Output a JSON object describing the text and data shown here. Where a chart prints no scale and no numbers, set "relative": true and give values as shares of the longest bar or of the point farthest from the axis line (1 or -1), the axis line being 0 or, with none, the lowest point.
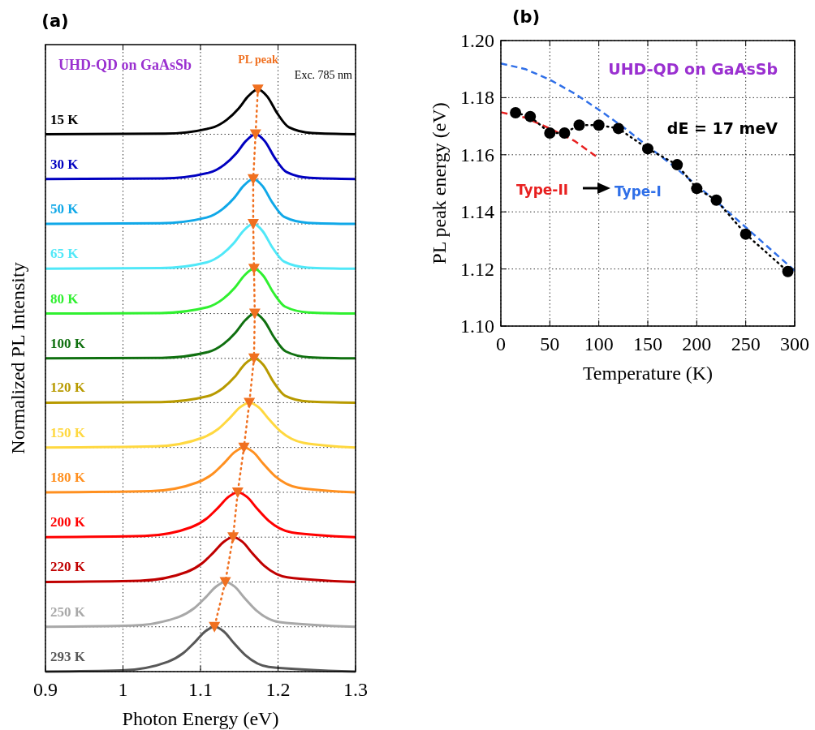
{
  "chart_data": [
    {
      "type": "line",
      "title": "(a)",
      "xlabel": "Photon Energy (eV)",
      "ylabel": "Normalized PL Intensity",
      "relative": true,
      "xlim": [
        0.9,
        1.3
      ],
      "xticks": [
        0.9,
        1,
        1.1,
        1.2,
        1.3
      ],
      "grid": true,
      "legend": false,
      "annotations": [
        "UHD-QD on GaAsSb",
        "PL peak",
        "Exc. 785 nm"
      ],
      "series": [
        {
          "name": "15 K",
          "color": "#000000",
          "x": [
            0.9,
            1.054,
            1.114,
            1.134,
            1.149,
            1.162,
            1.174,
            1.186,
            1.199,
            1.214,
            1.244,
            1.3
          ],
          "values": [
            0.923,
            0.924,
            0.934,
            0.948,
            0.967,
            0.989,
            1.0,
            0.988,
            0.959,
            0.935,
            0.925,
            0.923
          ]
        },
        {
          "name": "30 K",
          "color": "#0000c0",
          "x": [
            0.9,
            1.051,
            1.111,
            1.131,
            1.146,
            1.159,
            1.171,
            1.183,
            1.196,
            1.211,
            1.241,
            1.3
          ],
          "values": [
            0.846,
            0.847,
            0.857,
            0.871,
            0.89,
            0.912,
            0.923,
            0.911,
            0.882,
            0.858,
            0.848,
            0.846
          ]
        },
        {
          "name": "50 K",
          "color": "#10a8e8",
          "x": [
            0.9,
            1.048,
            1.108,
            1.128,
            1.143,
            1.156,
            1.168,
            1.18,
            1.193,
            1.208,
            1.238,
            1.3
          ],
          "values": [
            0.769,
            0.77,
            0.78,
            0.794,
            0.813,
            0.835,
            0.846,
            0.834,
            0.805,
            0.781,
            0.771,
            0.769
          ]
        },
        {
          "name": "65 K",
          "color": "#50e8f8",
          "x": [
            0.9,
            1.048,
            1.108,
            1.128,
            1.143,
            1.156,
            1.168,
            1.18,
            1.193,
            1.208,
            1.238,
            1.3
          ],
          "values": [
            0.692,
            0.693,
            0.703,
            0.717,
            0.736,
            0.758,
            0.769,
            0.757,
            0.728,
            0.704,
            0.694,
            0.692
          ]
        },
        {
          "name": "80 K",
          "color": "#30f030",
          "x": [
            0.9,
            1.049,
            1.109,
            1.129,
            1.144,
            1.157,
            1.169,
            1.181,
            1.194,
            1.209,
            1.239,
            1.3
          ],
          "values": [
            0.615,
            0.616,
            0.626,
            0.64,
            0.659,
            0.681,
            0.692,
            0.68,
            0.651,
            0.627,
            0.617,
            0.615
          ]
        },
        {
          "name": "100 K",
          "color": "#107010",
          "x": [
            0.9,
            1.05,
            1.11,
            1.13,
            1.145,
            1.158,
            1.17,
            1.182,
            1.195,
            1.21,
            1.24,
            1.3
          ],
          "values": [
            0.538,
            0.539,
            0.549,
            0.563,
            0.582,
            0.604,
            0.615,
            0.603,
            0.574,
            0.55,
            0.54,
            0.538
          ]
        },
        {
          "name": "120 K",
          "color": "#b89a00",
          "x": [
            0.9,
            1.049,
            1.109,
            1.129,
            1.144,
            1.157,
            1.169,
            1.181,
            1.194,
            1.209,
            1.239,
            1.3
          ],
          "values": [
            0.462,
            0.463,
            0.473,
            0.487,
            0.506,
            0.528,
            0.538,
            0.527,
            0.498,
            0.474,
            0.464,
            0.462
          ]
        },
        {
          "name": "150 K",
          "color": "#ffd840",
          "x": [
            0.9,
            1.043,
            1.103,
            1.123,
            1.138,
            1.151,
            1.163,
            1.175,
            1.188,
            1.203,
            1.233,
            1.3
          ],
          "values": [
            0.385,
            0.387,
            0.402,
            0.417,
            0.436,
            0.454,
            0.462,
            0.454,
            0.434,
            0.413,
            0.393,
            0.385
          ]
        },
        {
          "name": "180 K",
          "color": "#ff9020",
          "x": [
            0.9,
            1.036,
            1.096,
            1.116,
            1.131,
            1.144,
            1.156,
            1.168,
            1.181,
            1.196,
            1.226,
            1.3
          ],
          "values": [
            0.308,
            0.31,
            0.325,
            0.34,
            0.359,
            0.377,
            0.385,
            0.377,
            0.357,
            0.336,
            0.316,
            0.308
          ]
        },
        {
          "name": "200 K",
          "color": "#ff0000",
          "x": [
            0.9,
            1.028,
            1.088,
            1.108,
            1.123,
            1.136,
            1.148,
            1.16,
            1.173,
            1.188,
            1.218,
            1.3
          ],
          "values": [
            0.231,
            0.233,
            0.248,
            0.263,
            0.282,
            0.3,
            0.308,
            0.3,
            0.28,
            0.259,
            0.239,
            0.231
          ]
        },
        {
          "name": "220 K",
          "color": "#c00000",
          "x": [
            0.9,
            1.022,
            1.082,
            1.102,
            1.117,
            1.13,
            1.142,
            1.154,
            1.167,
            1.182,
            1.212,
            1.3
          ],
          "values": [
            0.154,
            0.156,
            0.171,
            0.186,
            0.205,
            0.223,
            0.231,
            0.223,
            0.203,
            0.182,
            0.162,
            0.154
          ]
        },
        {
          "name": "250 K",
          "color": "#a8a8a8",
          "x": [
            0.9,
            1.012,
            1.072,
            1.092,
            1.107,
            1.12,
            1.132,
            1.144,
            1.157,
            1.172,
            1.202,
            1.3
          ],
          "values": [
            0.077,
            0.079,
            0.094,
            0.109,
            0.128,
            0.146,
            0.154,
            0.146,
            0.126,
            0.105,
            0.085,
            0.077
          ]
        },
        {
          "name": "293 K",
          "color": "#585858",
          "x": [
            0.9,
            0.998,
            1.058,
            1.078,
            1.093,
            1.106,
            1.118,
            1.13,
            1.143,
            1.158,
            1.188,
            1.3
          ],
          "values": [
            0,
            0.002,
            0.017,
            0.032,
            0.051,
            0.069,
            0.077,
            0.069,
            0.049,
            0.028,
            0.008,
            0
          ]
        },
        {
          "color": "#f07020",
          "line_style": "dotted",
          "marker": "triangle",
          "x": [
            1.174,
            1.171,
            1.168,
            1.168,
            1.169,
            1.17,
            1.169,
            1.163,
            1.156,
            1.148,
            1.142,
            1.132,
            1.118
          ],
          "values": [
            1.0,
            0.923,
            0.846,
            0.769,
            0.692,
            0.615,
            0.538,
            0.462,
            0.385,
            0.308,
            0.231,
            0.154,
            0.077
          ]
        }
      ]
    },
    {
      "type": "line",
      "title": "(b)",
      "xlabel": "Temperature (K)",
      "ylabel": "PL peak energy (eV)",
      "xlim": [
        0,
        300
      ],
      "xticks": [
        0,
        50,
        100,
        150,
        200,
        250,
        300
      ],
      "ylim": [
        1.1,
        1.2
      ],
      "yticks": [
        {
          "value": 1.1,
          "label": "1.10"
        },
        {
          "value": 1.12,
          "label": "1.12"
        },
        {
          "value": 1.14,
          "label": "1.14"
        },
        {
          "value": 1.16,
          "label": "1.16"
        },
        {
          "value": 1.18,
          "label": "1.18"
        },
        {
          "value": 1.2,
          "label": "1.20"
        }
      ],
      "grid": true,
      "legend": false,
      "annotations": [
        "UHD-QD on GaAsSb",
        "dE = 17 meV",
        "Type-II",
        "Type-I"
      ],
      "series": [
        {
          "color": "#2f6fe8",
          "line_style": "dashed",
          "marker": "none",
          "x": [
            0,
            25,
            50,
            75,
            100,
            125,
            150,
            175,
            200,
            225,
            250,
            275,
            300
          ],
          "values": [
            1.192,
            1.19,
            1.1863,
            1.1815,
            1.1758,
            1.1697,
            1.163,
            1.1564,
            1.1493,
            1.1422,
            1.1346,
            1.127,
            1.1194
          ]
        },
        {
          "color": "#e82020",
          "line_style": "dashed",
          "marker": "none",
          "x": [
            0,
            25,
            50,
            75,
            97
          ],
          "values": [
            1.1749,
            1.173,
            1.1692,
            1.1649,
            1.1595
          ]
        },
        {
          "color": "#000000",
          "line_style": "dotted",
          "marker": "circle",
          "x": [
            15,
            30,
            50,
            65,
            80,
            100,
            120,
            150,
            180,
            200,
            220,
            250,
            293
          ],
          "values": [
            1.1747,
            1.1734,
            1.1676,
            1.1676,
            1.1704,
            1.1704,
            1.1692,
            1.1621,
            1.1565,
            1.1482,
            1.1441,
            1.1322,
            1.1191
          ]
        }
      ]
    }
  ]
}
